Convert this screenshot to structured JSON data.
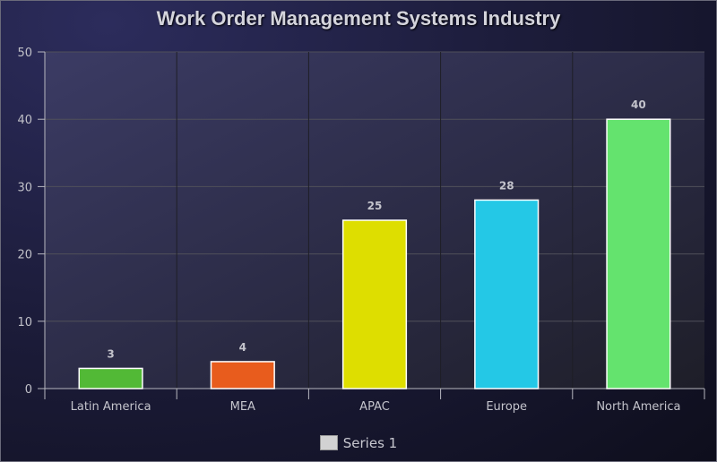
{
  "chart_data": {
    "type": "bar",
    "title": "Work Order Management Systems Industry",
    "categories": [
      "Latin America",
      "MEA",
      "APAC",
      "Europe",
      "North America"
    ],
    "series": [
      {
        "name": "Series 1",
        "values": [
          3,
          4,
          25,
          28,
          40
        ]
      }
    ],
    "bar_colors": [
      "#52b936",
      "#e85c1d",
      "#dede00",
      "#24c8e6",
      "#64e36e"
    ],
    "ylim": [
      0,
      50
    ],
    "yticks": [
      0,
      10,
      20,
      30,
      40,
      50
    ],
    "grid": true,
    "legend_position": "bottom",
    "data_labels": true
  }
}
